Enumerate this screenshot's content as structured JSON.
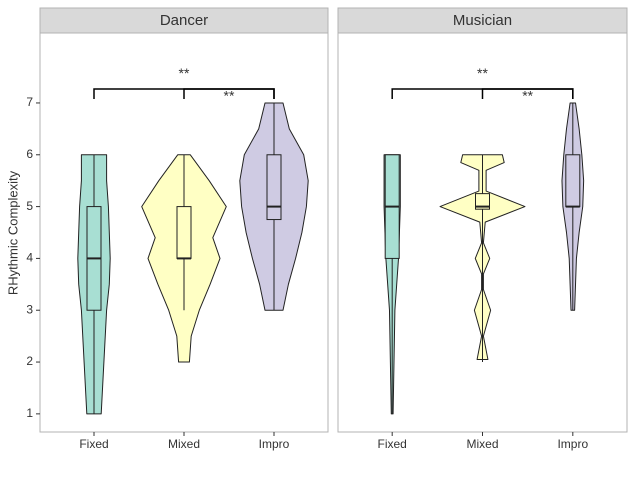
{
  "chart_data": [
    {
      "type": "violin",
      "title": "Dancer",
      "ylabel": "RHythmic Complexity",
      "categories": [
        "Fixed",
        "Mixed",
        "Impro"
      ],
      "colors": [
        "#a8dfd3",
        "#ffffc4",
        "#cfcbe3"
      ],
      "ylim": [
        0.65,
        8.35
      ],
      "yticks": [
        1,
        2,
        3,
        4,
        5,
        6,
        7
      ],
      "boxes": [
        {
          "min": 1,
          "q1": 3,
          "median": 4,
          "q3": 5,
          "max": 6
        },
        {
          "min": 3,
          "q1": 4,
          "median": 4,
          "q3": 5,
          "max": 6
        },
        {
          "min": 3,
          "q1": 4.75,
          "median": 5,
          "q3": 6,
          "max": 7
        }
      ],
      "violins": [
        {
          "y": [
            1,
            2,
            3,
            3.5,
            4,
            4.5,
            5,
            5.5,
            6
          ],
          "width": [
            0.08,
            0.11,
            0.14,
            0.17,
            0.18,
            0.17,
            0.16,
            0.14,
            0.14
          ]
        },
        {
          "y": [
            2,
            2.5,
            3,
            3.5,
            4,
            4.4,
            5,
            5.5,
            6
          ],
          "width": [
            0.06,
            0.08,
            0.17,
            0.29,
            0.4,
            0.32,
            0.47,
            0.28,
            0.07
          ]
        },
        {
          "y": [
            3,
            3.5,
            4,
            4.5,
            5,
            5.5,
            6,
            6.5,
            7
          ],
          "width": [
            0.1,
            0.16,
            0.24,
            0.31,
            0.36,
            0.38,
            0.33,
            0.17,
            0.1
          ]
        }
      ],
      "comparisons": [
        {
          "groups": [
            "Fixed",
            "Impro"
          ],
          "label": "**",
          "y": 7.27,
          "label_y": 7.55
        },
        {
          "groups": [
            "Mixed",
            "Impro"
          ],
          "label": "**",
          "y": 7.27,
          "label_y": 7.12
        }
      ]
    },
    {
      "type": "violin",
      "title": "Musician",
      "categories": [
        "Fixed",
        "Mixed",
        "Impro"
      ],
      "colors": [
        "#a8dfd3",
        "#ffffc4",
        "#cfcbe3"
      ],
      "ylim": [
        0.65,
        8.35
      ],
      "boxes": [
        {
          "min": 1,
          "q1": 4,
          "median": 5,
          "q3": 6,
          "max": 6
        },
        {
          "min": 2,
          "q1": 4.95,
          "median": 5,
          "q3": 5.25,
          "max": 6
        },
        {
          "min": 3,
          "q1": 5,
          "median": 5,
          "q3": 6,
          "max": 7
        }
      ],
      "violins": [
        {
          "y": [
            1,
            2,
            3,
            4,
            4.5,
            5,
            5.5,
            6
          ],
          "width": [
            0.01,
            0.02,
            0.03,
            0.07,
            0.08,
            0.09,
            0.09,
            0.09
          ]
        },
        {
          "y": [
            2.05,
            2.5,
            3,
            3.4,
            3.7,
            4,
            4.3,
            4.7,
            5,
            5.3,
            5.7,
            5.85,
            6
          ],
          "width": [
            0.06,
            0.01,
            0.09,
            0.01,
            0.01,
            0.08,
            0.01,
            0.03,
            0.47,
            0.04,
            0.04,
            0.24,
            0.22
          ]
        },
        {
          "y": [
            3,
            4,
            4.5,
            5,
            5.5,
            6,
            6.5,
            7
          ],
          "width": [
            0.02,
            0.04,
            0.07,
            0.11,
            0.12,
            0.1,
            0.07,
            0.03
          ]
        }
      ],
      "comparisons": [
        {
          "groups": [
            "Fixed",
            "Impro"
          ],
          "label": "**",
          "y": 7.27,
          "label_y": 7.55
        },
        {
          "groups": [
            "Mixed",
            "Impro"
          ],
          "label": "**",
          "y": 7.27,
          "label_y": 7.12
        }
      ]
    }
  ]
}
